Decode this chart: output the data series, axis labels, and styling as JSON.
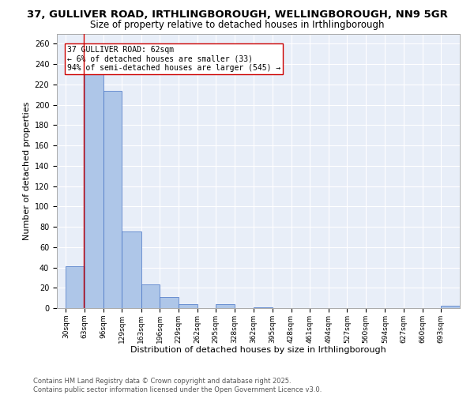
{
  "title_line1": "37, GULLIVER ROAD, IRTHLINGBOROUGH, WELLINGBOROUGH, NN9 5GR",
  "title_line2": "Size of property relative to detached houses in Irthlingborough",
  "xlabel": "Distribution of detached houses by size in Irthlingborough",
  "ylabel": "Number of detached properties",
  "bar_edges": [
    30,
    63,
    96,
    129,
    163,
    196,
    229,
    262,
    295,
    328,
    362,
    395,
    428,
    461,
    494,
    527,
    560,
    594,
    627,
    660,
    693
  ],
  "bar_heights": [
    41,
    248,
    214,
    75,
    23,
    11,
    4,
    0,
    4,
    0,
    1,
    0,
    0,
    0,
    0,
    0,
    0,
    0,
    0,
    0,
    2
  ],
  "bar_color": "#aec6e8",
  "bar_edge_color": "#4472c4",
  "property_line_x": 62,
  "property_line_color": "#cc0000",
  "annotation_text": "37 GULLIVER ROAD: 62sqm\n← 6% of detached houses are smaller (33)\n94% of semi-detached houses are larger (545) →",
  "annotation_box_color": "#ffffff",
  "annotation_box_edge_color": "#cc0000",
  "ylim": [
    0,
    270
  ],
  "yticks": [
    0,
    20,
    40,
    60,
    80,
    100,
    120,
    140,
    160,
    180,
    200,
    220,
    240,
    260
  ],
  "xlim_min": 14,
  "xlim_max": 726,
  "background_color": "#e8eef8",
  "grid_color": "#ffffff",
  "footnote": "Contains HM Land Registry data © Crown copyright and database right 2025.\nContains public sector information licensed under the Open Government Licence v3.0.",
  "title_fontsize": 9.5,
  "subtitle_fontsize": 8.5,
  "tick_label_fontsize": 6.5,
  "axis_label_fontsize": 8,
  "annotation_fontsize": 7,
  "footnote_fontsize": 6
}
